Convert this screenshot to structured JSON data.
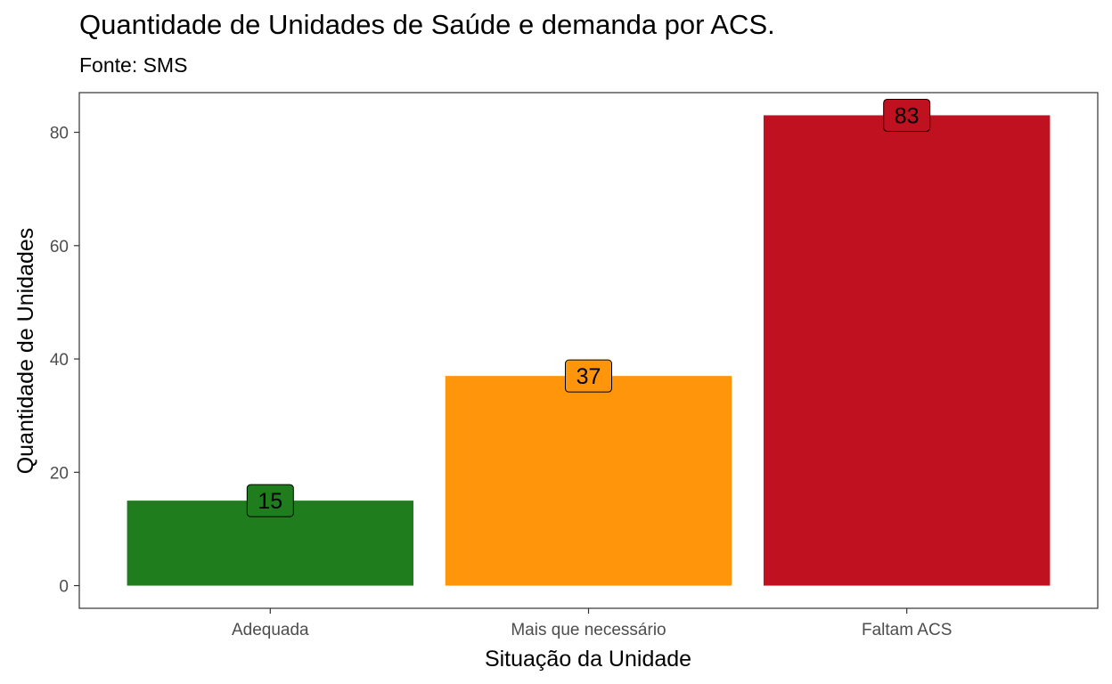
{
  "chart_data": {
    "type": "bar",
    "title": "Quantidade de Unidades de Saúde e demanda por ACS.",
    "subtitle": "Fonte: SMS",
    "xlabel": "Situação da Unidade",
    "ylabel": "Quantidade de Unidades",
    "categories": [
      "Adequada",
      "Mais que necessário",
      "Faltam ACS"
    ],
    "values": [
      15,
      37,
      83
    ],
    "colors": [
      "#1f7d1d",
      "#fe950b",
      "#bf1120"
    ],
    "ylim": [
      -4,
      87
    ],
    "yticks": [
      0,
      20,
      40,
      60,
      80
    ],
    "grid": false,
    "legend": "none"
  }
}
